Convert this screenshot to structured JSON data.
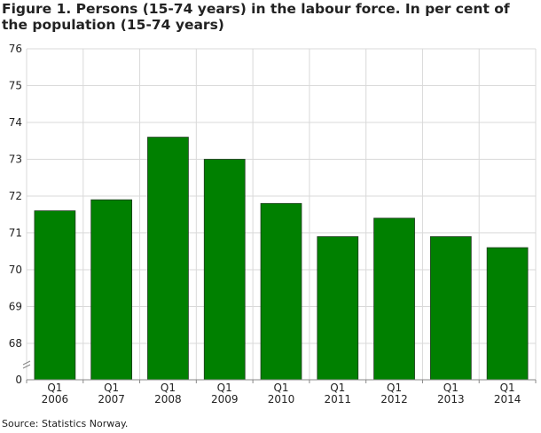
{
  "title": "Figure 1. Persons (15-74 years) in the labour force. In per cent of the population (15-74 years)",
  "source": "Source: Statistics Norway.",
  "colors": {
    "bar": "#008000",
    "bar_stroke": "#1f3a1f",
    "grid": "#d9d9d9",
    "axis": "#888888",
    "text": "#222222"
  },
  "chart_data": {
    "type": "bar",
    "categories": [
      [
        "Q1",
        "2006"
      ],
      [
        "Q1",
        "2007"
      ],
      [
        "Q1",
        "2008"
      ],
      [
        "Q1",
        "2009"
      ],
      [
        "Q1",
        "2010"
      ],
      [
        "Q1",
        "2011"
      ],
      [
        "Q1",
        "2012"
      ],
      [
        "Q1",
        "2013"
      ],
      [
        "Q1",
        "2014"
      ]
    ],
    "values": [
      71.6,
      71.9,
      73.6,
      73.0,
      71.8,
      70.9,
      71.4,
      70.9,
      70.6
    ],
    "yticks": [
      0,
      68,
      69,
      70,
      71,
      72,
      73,
      74,
      75,
      76
    ],
    "ylim": [
      67,
      76
    ],
    "axis_break": true,
    "grid": true,
    "legend": "none"
  }
}
